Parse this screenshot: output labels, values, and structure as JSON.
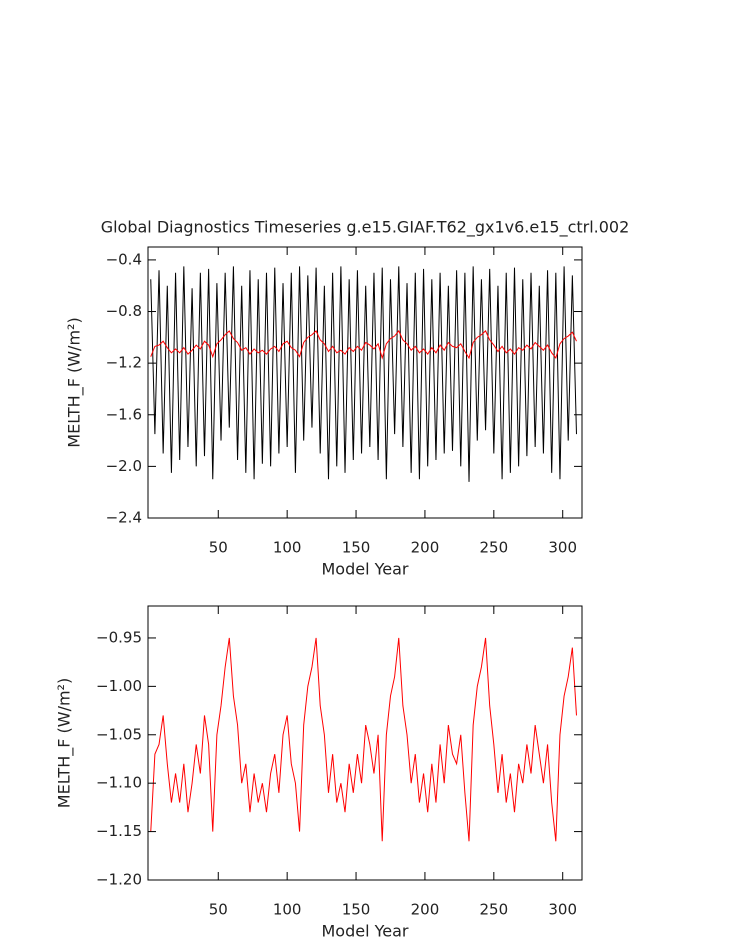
{
  "chart_data": [
    {
      "type": "line",
      "title": "Global Diagnostics Timeseries g.e15.GIAF.T62_gx1v6.e15_ctrl.002",
      "xlabel": "Model Year",
      "ylabel": "MELTH_F (W/m²)",
      "x": [
        1,
        4,
        7,
        10,
        13,
        16,
        19,
        22,
        25,
        28,
        31,
        34,
        37,
        40,
        43,
        46,
        49,
        52,
        55,
        58,
        61,
        64,
        67,
        70,
        73,
        76,
        79,
        82,
        85,
        88,
        91,
        94,
        97,
        100,
        103,
        106,
        109,
        112,
        115,
        118,
        121,
        124,
        127,
        130,
        133,
        136,
        139,
        142,
        145,
        148,
        151,
        154,
        157,
        160,
        163,
        166,
        169,
        172,
        175,
        178,
        181,
        184,
        187,
        190,
        193,
        196,
        199,
        202,
        205,
        208,
        211,
        214,
        217,
        220,
        223,
        226,
        229,
        232,
        235,
        238,
        241,
        244,
        247,
        250,
        253,
        256,
        259,
        262,
        265,
        268,
        271,
        274,
        277,
        280,
        283,
        286,
        289,
        292,
        295,
        298,
        301,
        304,
        307,
        310
      ],
      "series": [
        {
          "color": "#000000",
          "values": [
            -0.55,
            -1.75,
            -0.48,
            -1.9,
            -0.6,
            -2.05,
            -0.5,
            -1.95,
            -0.45,
            -1.85,
            -0.62,
            -2.0,
            -0.5,
            -1.92,
            -0.47,
            -2.1,
            -0.58,
            -1.8,
            -0.5,
            -1.7,
            -0.45,
            -1.95,
            -0.6,
            -2.05,
            -0.48,
            -2.1,
            -0.55,
            -1.98,
            -0.5,
            -2.0,
            -0.46,
            -1.9,
            -0.58,
            -1.85,
            -0.5,
            -2.05,
            -0.45,
            -1.8,
            -0.52,
            -1.7,
            -0.46,
            -1.9,
            -0.6,
            -2.1,
            -0.5,
            -2.0,
            -0.45,
            -2.05,
            -0.55,
            -1.95,
            -0.48,
            -1.9,
            -0.6,
            -1.85,
            -0.5,
            -1.95,
            -0.46,
            -2.1,
            -0.55,
            -1.75,
            -0.45,
            -1.85,
            -0.58,
            -2.05,
            -0.5,
            -2.1,
            -0.47,
            -2.0,
            -0.55,
            -1.95,
            -0.5,
            -1.9,
            -0.6,
            -1.88,
            -0.48,
            -2.0,
            -0.5,
            -2.12,
            -0.45,
            -1.8,
            -0.55,
            -1.72,
            -0.47,
            -1.9,
            -0.6,
            -2.1,
            -0.5,
            -2.05,
            -0.46,
            -2.0,
            -0.55,
            -1.92,
            -0.5,
            -1.85,
            -0.6,
            -1.9,
            -0.48,
            -2.05,
            -0.5,
            -2.1,
            -0.45,
            -1.8,
            -0.52,
            -1.75
          ]
        },
        {
          "color": "#ff0000",
          "values": [
            -1.15,
            -1.07,
            -1.06,
            -1.03,
            -1.08,
            -1.12,
            -1.09,
            -1.12,
            -1.08,
            -1.13,
            -1.1,
            -1.06,
            -1.09,
            -1.03,
            -1.06,
            -1.15,
            -1.05,
            -1.02,
            -0.98,
            -0.95,
            -1.01,
            -1.04,
            -1.1,
            -1.08,
            -1.13,
            -1.09,
            -1.12,
            -1.1,
            -1.13,
            -1.09,
            -1.07,
            -1.11,
            -1.05,
            -1.03,
            -1.08,
            -1.1,
            -1.15,
            -1.04,
            -1,
            -0.98,
            -0.95,
            -1.02,
            -1.05,
            -1.11,
            -1.07,
            -1.12,
            -1.1,
            -1.13,
            -1.08,
            -1.11,
            -1.07,
            -1.1,
            -1.04,
            -1.06,
            -1.09,
            -1.05,
            -1.16,
            -1.05,
            -1.01,
            -0.99,
            -0.95,
            -1.02,
            -1.05,
            -1.1,
            -1.07,
            -1.12,
            -1.09,
            -1.13,
            -1.08,
            -1.12,
            -1.06,
            -1.1,
            -1.04,
            -1.07,
            -1.08,
            -1.05,
            -1.11,
            -1.16,
            -1.04,
            -1,
            -0.98,
            -0.95,
            -1.02,
            -1.06,
            -1.11,
            -1.07,
            -1.12,
            -1.09,
            -1.13,
            -1.08,
            -1.1,
            -1.06,
            -1.09,
            -1.04,
            -1.07,
            -1.1,
            -1.06,
            -1.12,
            -1.16,
            -1.05,
            -1.01,
            -0.99,
            -0.96,
            -1.03
          ]
        }
      ],
      "xlim": [
        -1,
        314
      ],
      "xticks": [
        50,
        100,
        150,
        200,
        250,
        300
      ],
      "ylim": [
        -2.4,
        -0.3
      ],
      "yticks": [
        {
          "value": -2.4,
          "label": "−2.4"
        },
        {
          "value": -2,
          "label": "−2.0"
        },
        {
          "value": -1.6,
          "label": "−1.6"
        },
        {
          "value": -1.2,
          "label": "−1.2"
        },
        {
          "value": -0.8,
          "label": "−0.8"
        },
        {
          "value": -0.4,
          "label": "−0.4"
        }
      ]
    },
    {
      "type": "line",
      "xlabel": "Model Year",
      "ylabel": "MELTH_F (W/m²)",
      "x": [
        1,
        4,
        7,
        10,
        13,
        16,
        19,
        22,
        25,
        28,
        31,
        34,
        37,
        40,
        43,
        46,
        49,
        52,
        55,
        58,
        61,
        64,
        67,
        70,
        73,
        76,
        79,
        82,
        85,
        88,
        91,
        94,
        97,
        100,
        103,
        106,
        109,
        112,
        115,
        118,
        121,
        124,
        127,
        130,
        133,
        136,
        139,
        142,
        145,
        148,
        151,
        154,
        157,
        160,
        163,
        166,
        169,
        172,
        175,
        178,
        181,
        184,
        187,
        190,
        193,
        196,
        199,
        202,
        205,
        208,
        211,
        214,
        217,
        220,
        223,
        226,
        229,
        232,
        235,
        238,
        241,
        244,
        247,
        250,
        253,
        256,
        259,
        262,
        265,
        268,
        271,
        274,
        277,
        280,
        283,
        286,
        289,
        292,
        295,
        298,
        301,
        304,
        307,
        310
      ],
      "series": [
        {
          "color": "#ff0000",
          "values": [
            -1.15,
            -1.07,
            -1.06,
            -1.03,
            -1.08,
            -1.12,
            -1.09,
            -1.12,
            -1.08,
            -1.13,
            -1.1,
            -1.06,
            -1.09,
            -1.03,
            -1.06,
            -1.15,
            -1.05,
            -1.02,
            -0.98,
            -0.95,
            -1.01,
            -1.04,
            -1.1,
            -1.08,
            -1.13,
            -1.09,
            -1.12,
            -1.1,
            -1.13,
            -1.09,
            -1.07,
            -1.11,
            -1.05,
            -1.03,
            -1.08,
            -1.1,
            -1.15,
            -1.04,
            -1,
            -0.98,
            -0.95,
            -1.02,
            -1.05,
            -1.11,
            -1.07,
            -1.12,
            -1.1,
            -1.13,
            -1.08,
            -1.11,
            -1.07,
            -1.1,
            -1.04,
            -1.06,
            -1.09,
            -1.05,
            -1.16,
            -1.05,
            -1.01,
            -0.99,
            -0.95,
            -1.02,
            -1.05,
            -1.1,
            -1.07,
            -1.12,
            -1.09,
            -1.13,
            -1.08,
            -1.12,
            -1.06,
            -1.1,
            -1.04,
            -1.07,
            -1.08,
            -1.05,
            -1.11,
            -1.16,
            -1.04,
            -1,
            -0.98,
            -0.95,
            -1.02,
            -1.06,
            -1.11,
            -1.07,
            -1.12,
            -1.09,
            -1.13,
            -1.08,
            -1.1,
            -1.06,
            -1.09,
            -1.04,
            -1.07,
            -1.1,
            -1.06,
            -1.12,
            -1.16,
            -1.05,
            -1.01,
            -0.99,
            -0.96,
            -1.03
          ]
        }
      ],
      "xlim": [
        -1,
        314
      ],
      "xticks": [
        50,
        100,
        150,
        200,
        250,
        300
      ],
      "ylim": [
        -1.2,
        -0.917
      ],
      "yticks": [
        {
          "value": -1.2,
          "label": "−1.20"
        },
        {
          "value": -1.15,
          "label": "−1.15"
        },
        {
          "value": -1.1,
          "label": "−1.10"
        },
        {
          "value": -1.05,
          "label": "−1.05"
        },
        {
          "value": -1,
          "label": "−1.00"
        },
        {
          "value": -0.95,
          "label": "−0.95"
        }
      ]
    }
  ]
}
